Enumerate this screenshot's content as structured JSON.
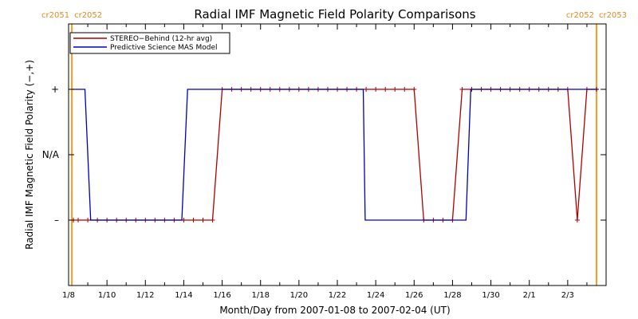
{
  "chart_data": {
    "type": "line",
    "title": "Radial IMF Magnetic Field Polarity Comparisons",
    "xlabel": "Month/Day from 2007-01-08 to 2007-02-04 (UT)",
    "ylabel": "Radial IMF Magnetic Field Polarity (−,+)",
    "x_start": "2007-01-08",
    "xlim_days": [
      0,
      28
    ],
    "ylim": [
      -2,
      2
    ],
    "grid": false,
    "legend_position": "top-left",
    "x_ticks": [
      {
        "label": "1/8",
        "day": 0
      },
      {
        "label": "1/10",
        "day": 2
      },
      {
        "label": "1/12",
        "day": 4
      },
      {
        "label": "1/14",
        "day": 6
      },
      {
        "label": "1/16",
        "day": 8
      },
      {
        "label": "1/18",
        "day": 10
      },
      {
        "label": "1/20",
        "day": 12
      },
      {
        "label": "1/22",
        "day": 14
      },
      {
        "label": "1/24",
        "day": 16
      },
      {
        "label": "1/26",
        "day": 18
      },
      {
        "label": "1/28",
        "day": 20
      },
      {
        "label": "1/30",
        "day": 22
      },
      {
        "label": "2/1",
        "day": 24
      },
      {
        "label": "2/3",
        "day": 26
      }
    ],
    "y_ticks": [
      {
        "label": "+",
        "value": 1
      },
      {
        "label": "N/A",
        "value": 0
      },
      {
        "label": "–",
        "value": -1
      }
    ],
    "carrington_markers": [
      {
        "day": 0.17,
        "label_left": "cr2051",
        "label_right": "cr2052"
      },
      {
        "day": 27.5,
        "label_left": "cr2052",
        "label_right": "cr2053"
      }
    ],
    "series": [
      {
        "name": "STEREO−Behind (12-hr avg)",
        "color": "#b00000",
        "marker": "+",
        "x": [
          0.25,
          0.5,
          1.0,
          1.5,
          2.0,
          2.5,
          3.0,
          3.5,
          4.0,
          4.5,
          5.0,
          5.5,
          6.0,
          6.5,
          7.0,
          7.5,
          8.0,
          8.5,
          9.0,
          9.5,
          10.0,
          10.5,
          11.0,
          11.5,
          12.0,
          12.5,
          13.0,
          13.5,
          14.0,
          14.5,
          15.0,
          15.5,
          16.0,
          16.5,
          17.0,
          17.5,
          18.0,
          18.5,
          19.0,
          19.5,
          20.0,
          20.5,
          21.0,
          21.5,
          22.0,
          22.5,
          23.0,
          23.5,
          24.0,
          24.5,
          25.0,
          25.5,
          26.0,
          26.5,
          27.0,
          27.5
        ],
        "values": [
          -1,
          -1,
          -1,
          -1,
          -1,
          -1,
          -1,
          -1,
          -1,
          -1,
          -1,
          -1,
          -1,
          -1,
          -1,
          -1,
          1,
          1,
          1,
          1,
          1,
          1,
          1,
          1,
          1,
          1,
          1,
          1,
          1,
          1,
          1,
          1,
          1,
          1,
          1,
          1,
          1,
          -1,
          -1,
          -1,
          -1,
          1,
          1,
          1,
          1,
          1,
          1,
          1,
          1,
          1,
          1,
          1,
          1,
          -1,
          1,
          1
        ]
      },
      {
        "name": "Predictive Science MAS Model",
        "color": "#0000c0",
        "marker": "",
        "x": [
          0.2,
          0.85,
          1.15,
          5.9,
          6.2,
          15.35,
          15.45,
          20.7,
          20.95,
          27.6
        ],
        "values": [
          1,
          1,
          -1,
          -1,
          1,
          1,
          -1,
          -1,
          1,
          1
        ]
      }
    ]
  }
}
